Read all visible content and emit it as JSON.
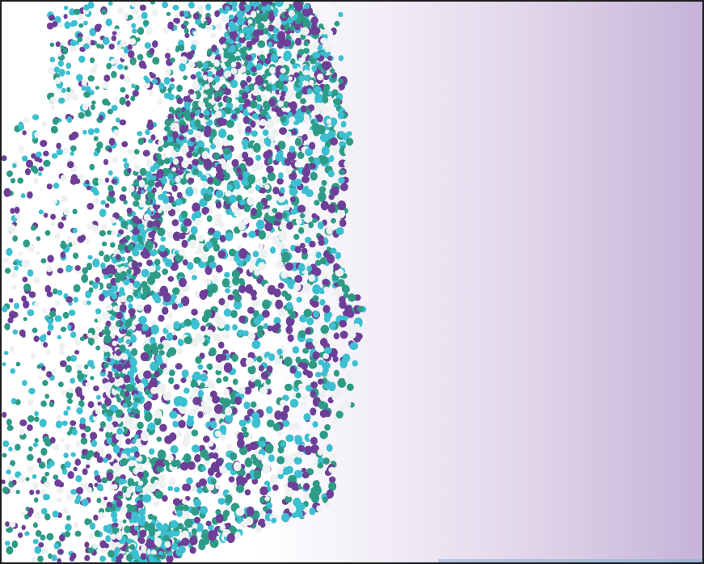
{
  "image": {
    "subject": "particle-face-profile",
    "palette": {
      "background_left": "#ffffff",
      "background_right": "#c6b3d8",
      "dot_purple": "#6e3f97",
      "dot_teal": "#2e9b86",
      "dot_cyan": "#3cbfd0",
      "dot_white": "#eef1f1",
      "frame": "#1c1c1c"
    },
    "direction": "face-right"
  }
}
